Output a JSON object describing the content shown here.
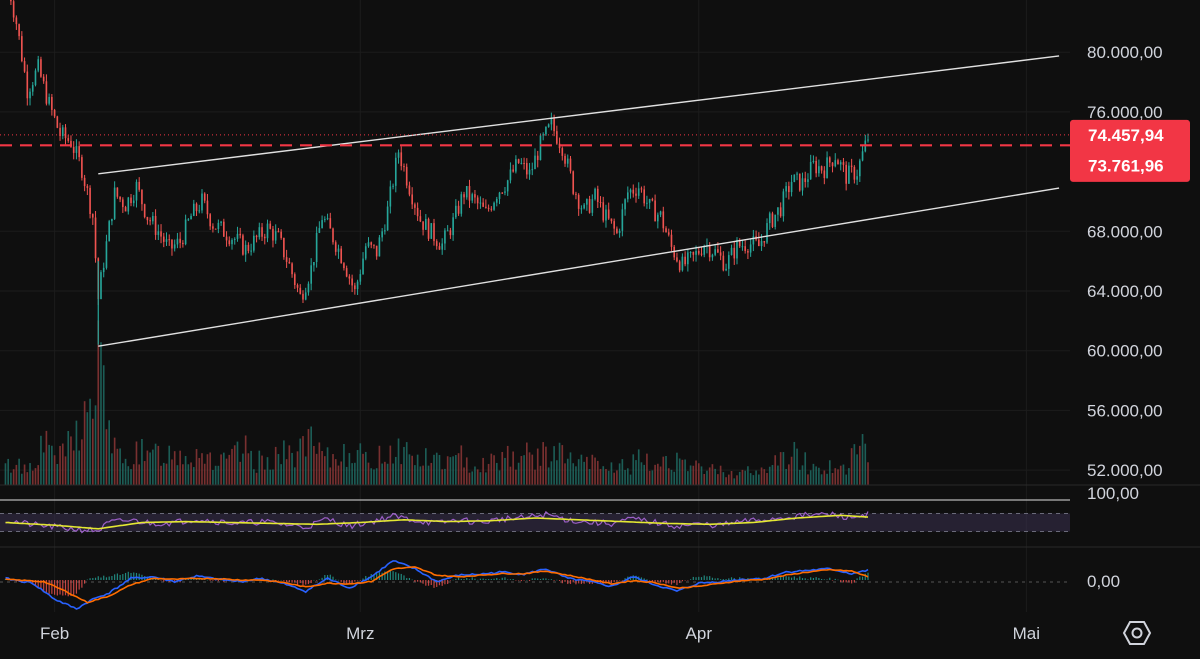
{
  "chart_data": {
    "type": "candlestick",
    "symbol": "BTC",
    "price_axis": {
      "ticks": [
        "80.000,00",
        "76.000,00",
        "68.000,00",
        "64.000,00",
        "60.000,00",
        "56.000,00",
        "52.000,00"
      ],
      "tick_values": [
        80000,
        76000,
        68000,
        64000,
        60000,
        56000,
        52000
      ],
      "range": [
        51000,
        83500
      ]
    },
    "time_axis": {
      "labels": [
        "Feb",
        "Mrz",
        "Apr",
        "Mai"
      ],
      "label_days": [
        0,
        28,
        59,
        89
      ],
      "range_days": [
        -5,
        93
      ]
    },
    "last_price": "74.457,94",
    "last_price_value": 74457.94,
    "dashed_level": "73.761,96",
    "dashed_level_value": 73761.96,
    "trendlines": [
      {
        "name": "upper",
        "points": [
          [
            4,
            71850
          ],
          [
            92,
            79750
          ]
        ]
      },
      {
        "name": "lower",
        "points": [
          [
            4,
            60300
          ],
          [
            92,
            70900
          ]
        ]
      }
    ],
    "close_series": [
      [
        -4.5,
        85500
      ],
      [
        -3.5,
        82000
      ],
      [
        -2.5,
        77500
      ],
      [
        -1.5,
        78900
      ],
      [
        -0.5,
        76500
      ],
      [
        0.5,
        74500
      ],
      [
        1.5,
        74000
      ],
      [
        2.5,
        72200
      ],
      [
        3.5,
        69000
      ],
      [
        4.0,
        63500
      ],
      [
        4.5,
        66000
      ],
      [
        5.5,
        70500
      ],
      [
        6.5,
        69800
      ],
      [
        7.5,
        71000
      ],
      [
        8.5,
        69000
      ],
      [
        9.5,
        68000
      ],
      [
        10.5,
        66800
      ],
      [
        11.5,
        67300
      ],
      [
        12.5,
        69000
      ],
      [
        13.5,
        70000
      ],
      [
        14.5,
        68500
      ],
      [
        15.5,
        68000
      ],
      [
        16.5,
        67500
      ],
      [
        17.5,
        66800
      ],
      [
        18.5,
        67500
      ],
      [
        19.5,
        68200
      ],
      [
        20.5,
        67500
      ],
      [
        21.5,
        65700
      ],
      [
        22.5,
        63600
      ],
      [
        23.5,
        65500
      ],
      [
        24.5,
        69000
      ],
      [
        25.5,
        67600
      ],
      [
        26.5,
        66000
      ],
      [
        27.5,
        63900
      ],
      [
        28.5,
        67000
      ],
      [
        29.5,
        66600
      ],
      [
        30.5,
        69400
      ],
      [
        31.5,
        73400
      ],
      [
        32.5,
        71000
      ],
      [
        33.5,
        68800
      ],
      [
        34.5,
        67900
      ],
      [
        35.5,
        67100
      ],
      [
        36.5,
        68600
      ],
      [
        37.5,
        70600
      ],
      [
        38.5,
        70000
      ],
      [
        39.5,
        69200
      ],
      [
        40.5,
        70600
      ],
      [
        41.5,
        71400
      ],
      [
        42.5,
        72600
      ],
      [
        43.5,
        71800
      ],
      [
        44.5,
        73800
      ],
      [
        45.5,
        75100
      ],
      [
        46.5,
        73700
      ],
      [
        47.5,
        71000
      ],
      [
        48.5,
        69300
      ],
      [
        49.5,
        70300
      ],
      [
        50.5,
        68900
      ],
      [
        51.5,
        67800
      ],
      [
        52.5,
        70600
      ],
      [
        53.5,
        71000
      ],
      [
        54.5,
        69600
      ],
      [
        55.5,
        69000
      ],
      [
        56.5,
        66900
      ],
      [
        57.5,
        65700
      ],
      [
        58.5,
        66200
      ],
      [
        59.5,
        67200
      ],
      [
        60.5,
        66600
      ],
      [
        61.5,
        65800
      ],
      [
        62.5,
        67000
      ],
      [
        63.5,
        67200
      ],
      [
        64.5,
        67000
      ],
      [
        65.5,
        68600
      ],
      [
        66.5,
        69600
      ],
      [
        67.5,
        71400
      ],
      [
        68.5,
        71200
      ],
      [
        69.5,
        72400
      ],
      [
        70.5,
        72200
      ],
      [
        71.5,
        73100
      ],
      [
        72.5,
        71700
      ],
      [
        73.5,
        72000
      ],
      [
        74.5,
        74300
      ]
    ],
    "volume_range": [
      0,
      110
    ],
    "volume_series": [
      [
        -4.5,
        16
      ],
      [
        -3.5,
        20
      ],
      [
        -2.5,
        14
      ],
      [
        -1.5,
        30
      ],
      [
        -0.5,
        36
      ],
      [
        0.5,
        24
      ],
      [
        1.5,
        38
      ],
      [
        2.5,
        56
      ],
      [
        3.5,
        70
      ],
      [
        4.0,
        108
      ],
      [
        4.5,
        88
      ],
      [
        5.5,
        30
      ],
      [
        6.5,
        18
      ],
      [
        7.5,
        34
      ],
      [
        8.5,
        22
      ],
      [
        9.5,
        30
      ],
      [
        10.5,
        28
      ],
      [
        11.5,
        30
      ],
      [
        12.5,
        26
      ],
      [
        13.5,
        32
      ],
      [
        14.5,
        22
      ],
      [
        15.5,
        20
      ],
      [
        16.5,
        26
      ],
      [
        17.5,
        30
      ],
      [
        18.5,
        20
      ],
      [
        19.5,
        24
      ],
      [
        20.5,
        28
      ],
      [
        21.5,
        26
      ],
      [
        22.5,
        34
      ],
      [
        23.5,
        36
      ],
      [
        24.5,
        24
      ],
      [
        25.5,
        22
      ],
      [
        26.5,
        30
      ],
      [
        27.5,
        34
      ],
      [
        28.5,
        20
      ],
      [
        29.5,
        24
      ],
      [
        30.5,
        30
      ],
      [
        31.5,
        34
      ],
      [
        32.5,
        28
      ],
      [
        33.5,
        22
      ],
      [
        34.5,
        24
      ],
      [
        35.5,
        22
      ],
      [
        36.5,
        20
      ],
      [
        37.5,
        26
      ],
      [
        38.5,
        18
      ],
      [
        39.5,
        20
      ],
      [
        40.5,
        22
      ],
      [
        41.5,
        30
      ],
      [
        42.5,
        22
      ],
      [
        43.5,
        28
      ],
      [
        44.5,
        24
      ],
      [
        45.5,
        32
      ],
      [
        46.5,
        26
      ],
      [
        47.5,
        22
      ],
      [
        48.5,
        18
      ],
      [
        49.5,
        20
      ],
      [
        50.5,
        14
      ],
      [
        51.5,
        18
      ],
      [
        52.5,
        16
      ],
      [
        53.5,
        22
      ],
      [
        54.5,
        18
      ],
      [
        55.5,
        20
      ],
      [
        56.5,
        26
      ],
      [
        57.5,
        16
      ],
      [
        58.5,
        14
      ],
      [
        59.5,
        18
      ],
      [
        60.5,
        12
      ],
      [
        61.5,
        14
      ],
      [
        62.5,
        10
      ],
      [
        63.5,
        12
      ],
      [
        64.5,
        10
      ],
      [
        65.5,
        20
      ],
      [
        66.5,
        22
      ],
      [
        67.5,
        28
      ],
      [
        68.5,
        24
      ],
      [
        69.5,
        14
      ],
      [
        70.5,
        18
      ],
      [
        71.5,
        16
      ],
      [
        72.5,
        12
      ],
      [
        73.5,
        38
      ],
      [
        74.5,
        26
      ]
    ],
    "rsi": {
      "axis_label": "100,00",
      "range": [
        0,
        100
      ],
      "band_upper": 70,
      "band_lower": 30,
      "rsi_series": [
        [
          -4.5,
          55
        ],
        [
          -2,
          45
        ],
        [
          0,
          40
        ],
        [
          2,
          35
        ],
        [
          4,
          32
        ],
        [
          5,
          50
        ],
        [
          7,
          55
        ],
        [
          9,
          48
        ],
        [
          11,
          50
        ],
        [
          13,
          58
        ],
        [
          15,
          52
        ],
        [
          17,
          48
        ],
        [
          19,
          52
        ],
        [
          21,
          46
        ],
        [
          23,
          40
        ],
        [
          25,
          58
        ],
        [
          27,
          42
        ],
        [
          29,
          52
        ],
        [
          31,
          64
        ],
        [
          33,
          55
        ],
        [
          35,
          48
        ],
        [
          37,
          56
        ],
        [
          39,
          50
        ],
        [
          41,
          58
        ],
        [
          43,
          60
        ],
        [
          45,
          68
        ],
        [
          47,
          56
        ],
        [
          49,
          50
        ],
        [
          51,
          48
        ],
        [
          53,
          58
        ],
        [
          55,
          50
        ],
        [
          57,
          42
        ],
        [
          59,
          46
        ],
        [
          61,
          44
        ],
        [
          63,
          52
        ],
        [
          65,
          56
        ],
        [
          67,
          62
        ],
        [
          69,
          66
        ],
        [
          71,
          68
        ],
        [
          73,
          60
        ],
        [
          74.5,
          70
        ]
      ],
      "ma_series": [
        [
          -4.5,
          50
        ],
        [
          0,
          44
        ],
        [
          4,
          36
        ],
        [
          8,
          50
        ],
        [
          12,
          52
        ],
        [
          16,
          50
        ],
        [
          20,
          48
        ],
        [
          24,
          46
        ],
        [
          28,
          50
        ],
        [
          32,
          56
        ],
        [
          36,
          52
        ],
        [
          40,
          54
        ],
        [
          44,
          60
        ],
        [
          48,
          56
        ],
        [
          52,
          52
        ],
        [
          56,
          48
        ],
        [
          60,
          46
        ],
        [
          64,
          50
        ],
        [
          68,
          60
        ],
        [
          72,
          66
        ],
        [
          74.5,
          62
        ]
      ],
      "colors": {
        "rsi": "#9c5fc7",
        "ma": "#e4e833",
        "band": "#3a3150"
      }
    },
    "macd": {
      "axis_label": "0,00",
      "range": [
        -1,
        1
      ],
      "macd_series": [
        [
          -4.5,
          0.05
        ],
        [
          -2,
          -0.1
        ],
        [
          0,
          -0.6
        ],
        [
          2,
          -0.9
        ],
        [
          3.5,
          -0.6
        ],
        [
          5,
          -0.4
        ],
        [
          7,
          0.05
        ],
        [
          9,
          0.1
        ],
        [
          11,
          -0.05
        ],
        [
          13,
          0.12
        ],
        [
          15,
          0.02
        ],
        [
          17,
          -0.05
        ],
        [
          19,
          0.05
        ],
        [
          21,
          -0.12
        ],
        [
          23,
          -0.35
        ],
        [
          25,
          0.05
        ],
        [
          27,
          -0.25
        ],
        [
          29,
          0.1
        ],
        [
          31,
          0.6
        ],
        [
          33,
          0.35
        ],
        [
          35,
          -0.05
        ],
        [
          37,
          0.15
        ],
        [
          39,
          0.18
        ],
        [
          41,
          0.25
        ],
        [
          43,
          0.18
        ],
        [
          45,
          0.35
        ],
        [
          47,
          0.05
        ],
        [
          49,
          -0.05
        ],
        [
          51,
          -0.2
        ],
        [
          53,
          0.1
        ],
        [
          55,
          -0.15
        ],
        [
          57,
          -0.35
        ],
        [
          59,
          -0.1
        ],
        [
          61,
          -0.05
        ],
        [
          63,
          0.02
        ],
        [
          65,
          0.05
        ],
        [
          67,
          0.25
        ],
        [
          69,
          0.3
        ],
        [
          71,
          0.35
        ],
        [
          73,
          0.2
        ],
        [
          74.5,
          0.3
        ]
      ],
      "signal_series": [
        [
          -4.5,
          0.02
        ],
        [
          -1,
          -0.05
        ],
        [
          1,
          -0.35
        ],
        [
          3,
          -0.7
        ],
        [
          5,
          -0.5
        ],
        [
          7,
          -0.15
        ],
        [
          9,
          0.05
        ],
        [
          11,
          0.02
        ],
        [
          13,
          0.05
        ],
        [
          15,
          0.04
        ],
        [
          17,
          0.0
        ],
        [
          19,
          0.0
        ],
        [
          21,
          -0.08
        ],
        [
          23,
          -0.22
        ],
        [
          25,
          -0.1
        ],
        [
          27,
          -0.12
        ],
        [
          29,
          -0.05
        ],
        [
          31,
          0.35
        ],
        [
          33,
          0.4
        ],
        [
          35,
          0.15
        ],
        [
          37,
          0.1
        ],
        [
          39,
          0.15
        ],
        [
          41,
          0.2
        ],
        [
          43,
          0.2
        ],
        [
          45,
          0.28
        ],
        [
          47,
          0.15
        ],
        [
          49,
          0.02
        ],
        [
          51,
          -0.12
        ],
        [
          53,
          -0.02
        ],
        [
          55,
          -0.08
        ],
        [
          57,
          -0.25
        ],
        [
          59,
          -0.2
        ],
        [
          61,
          -0.1
        ],
        [
          63,
          -0.02
        ],
        [
          65,
          0.02
        ],
        [
          67,
          0.15
        ],
        [
          69,
          0.25
        ],
        [
          71,
          0.32
        ],
        [
          73,
          0.28
        ],
        [
          74.5,
          0.1
        ]
      ],
      "colors": {
        "macd": "#2962ff",
        "signal": "#ff6d00",
        "hist_up": "#26a69a",
        "hist_down": "#ef5350"
      }
    },
    "colors": {
      "up": "#26a69a",
      "down": "#ef5350",
      "trendline": "#e0e0e0",
      "price_tag": "#f23645",
      "dashed_level": "#f23645",
      "background": "#0f0f0f"
    }
  },
  "settings_icon": "settings-hexagon-icon"
}
